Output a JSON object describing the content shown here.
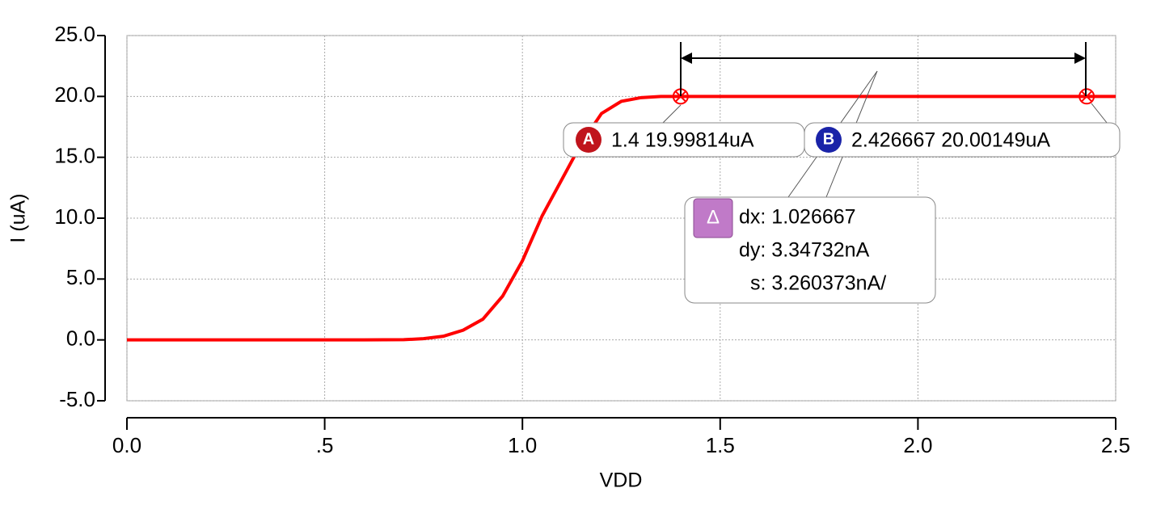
{
  "chart_data": {
    "type": "line",
    "xlabel": "VDD",
    "ylabel": "I (uA)",
    "x": [
      0,
      0.5,
      0.6,
      0.7,
      0.75,
      0.8,
      0.85,
      0.9,
      0.95,
      1.0,
      1.05,
      1.1,
      1.15,
      1.2,
      1.25,
      1.3,
      1.35,
      1.4,
      2.5
    ],
    "series": [
      {
        "name": "I",
        "color": "#ff0000",
        "values": [
          0,
          0,
          0,
          0.02,
          0.1,
          0.3,
          0.8,
          1.7,
          3.6,
          6.5,
          10.2,
          13.2,
          16.2,
          18.6,
          19.6,
          19.9,
          20.0,
          20.0,
          20.0
        ]
      }
    ],
    "xlim": [
      0,
      2.5
    ],
    "xticks": [
      {
        "value": 0,
        "label": "0.0"
      },
      {
        "value": 0.5,
        "label": ".5"
      },
      {
        "value": 1,
        "label": "1.0"
      },
      {
        "value": 1.5,
        "label": "1.5"
      },
      {
        "value": 2,
        "label": "2.0"
      },
      {
        "value": 2.5,
        "label": "2.5"
      }
    ],
    "ylim": [
      -5,
      25
    ],
    "yticks": [
      {
        "value": -5,
        "label": "-5.0"
      },
      {
        "value": 0,
        "label": "0.0"
      },
      {
        "value": 5,
        "label": "5.0"
      },
      {
        "value": 10,
        "label": "10.0"
      },
      {
        "value": 15,
        "label": "15.0"
      },
      {
        "value": 20,
        "label": "20.0"
      },
      {
        "value": 25,
        "label": "25.0"
      }
    ],
    "grid": true,
    "markers": [
      {
        "name": "A",
        "x": 1.4,
        "y": 19.99814,
        "label": "1.4 19.99814uA",
        "color": "#c0141c"
      },
      {
        "name": "B",
        "x": 2.426667,
        "y": 20.00149,
        "label": "2.426667 20.00149uA",
        "color": "#1a23a8"
      }
    ],
    "delta": {
      "name": "Δ",
      "dx": "dx: 1.026667",
      "dy": "dy: 3.34732nA",
      "s": "s: 3.260373nA/"
    }
  }
}
